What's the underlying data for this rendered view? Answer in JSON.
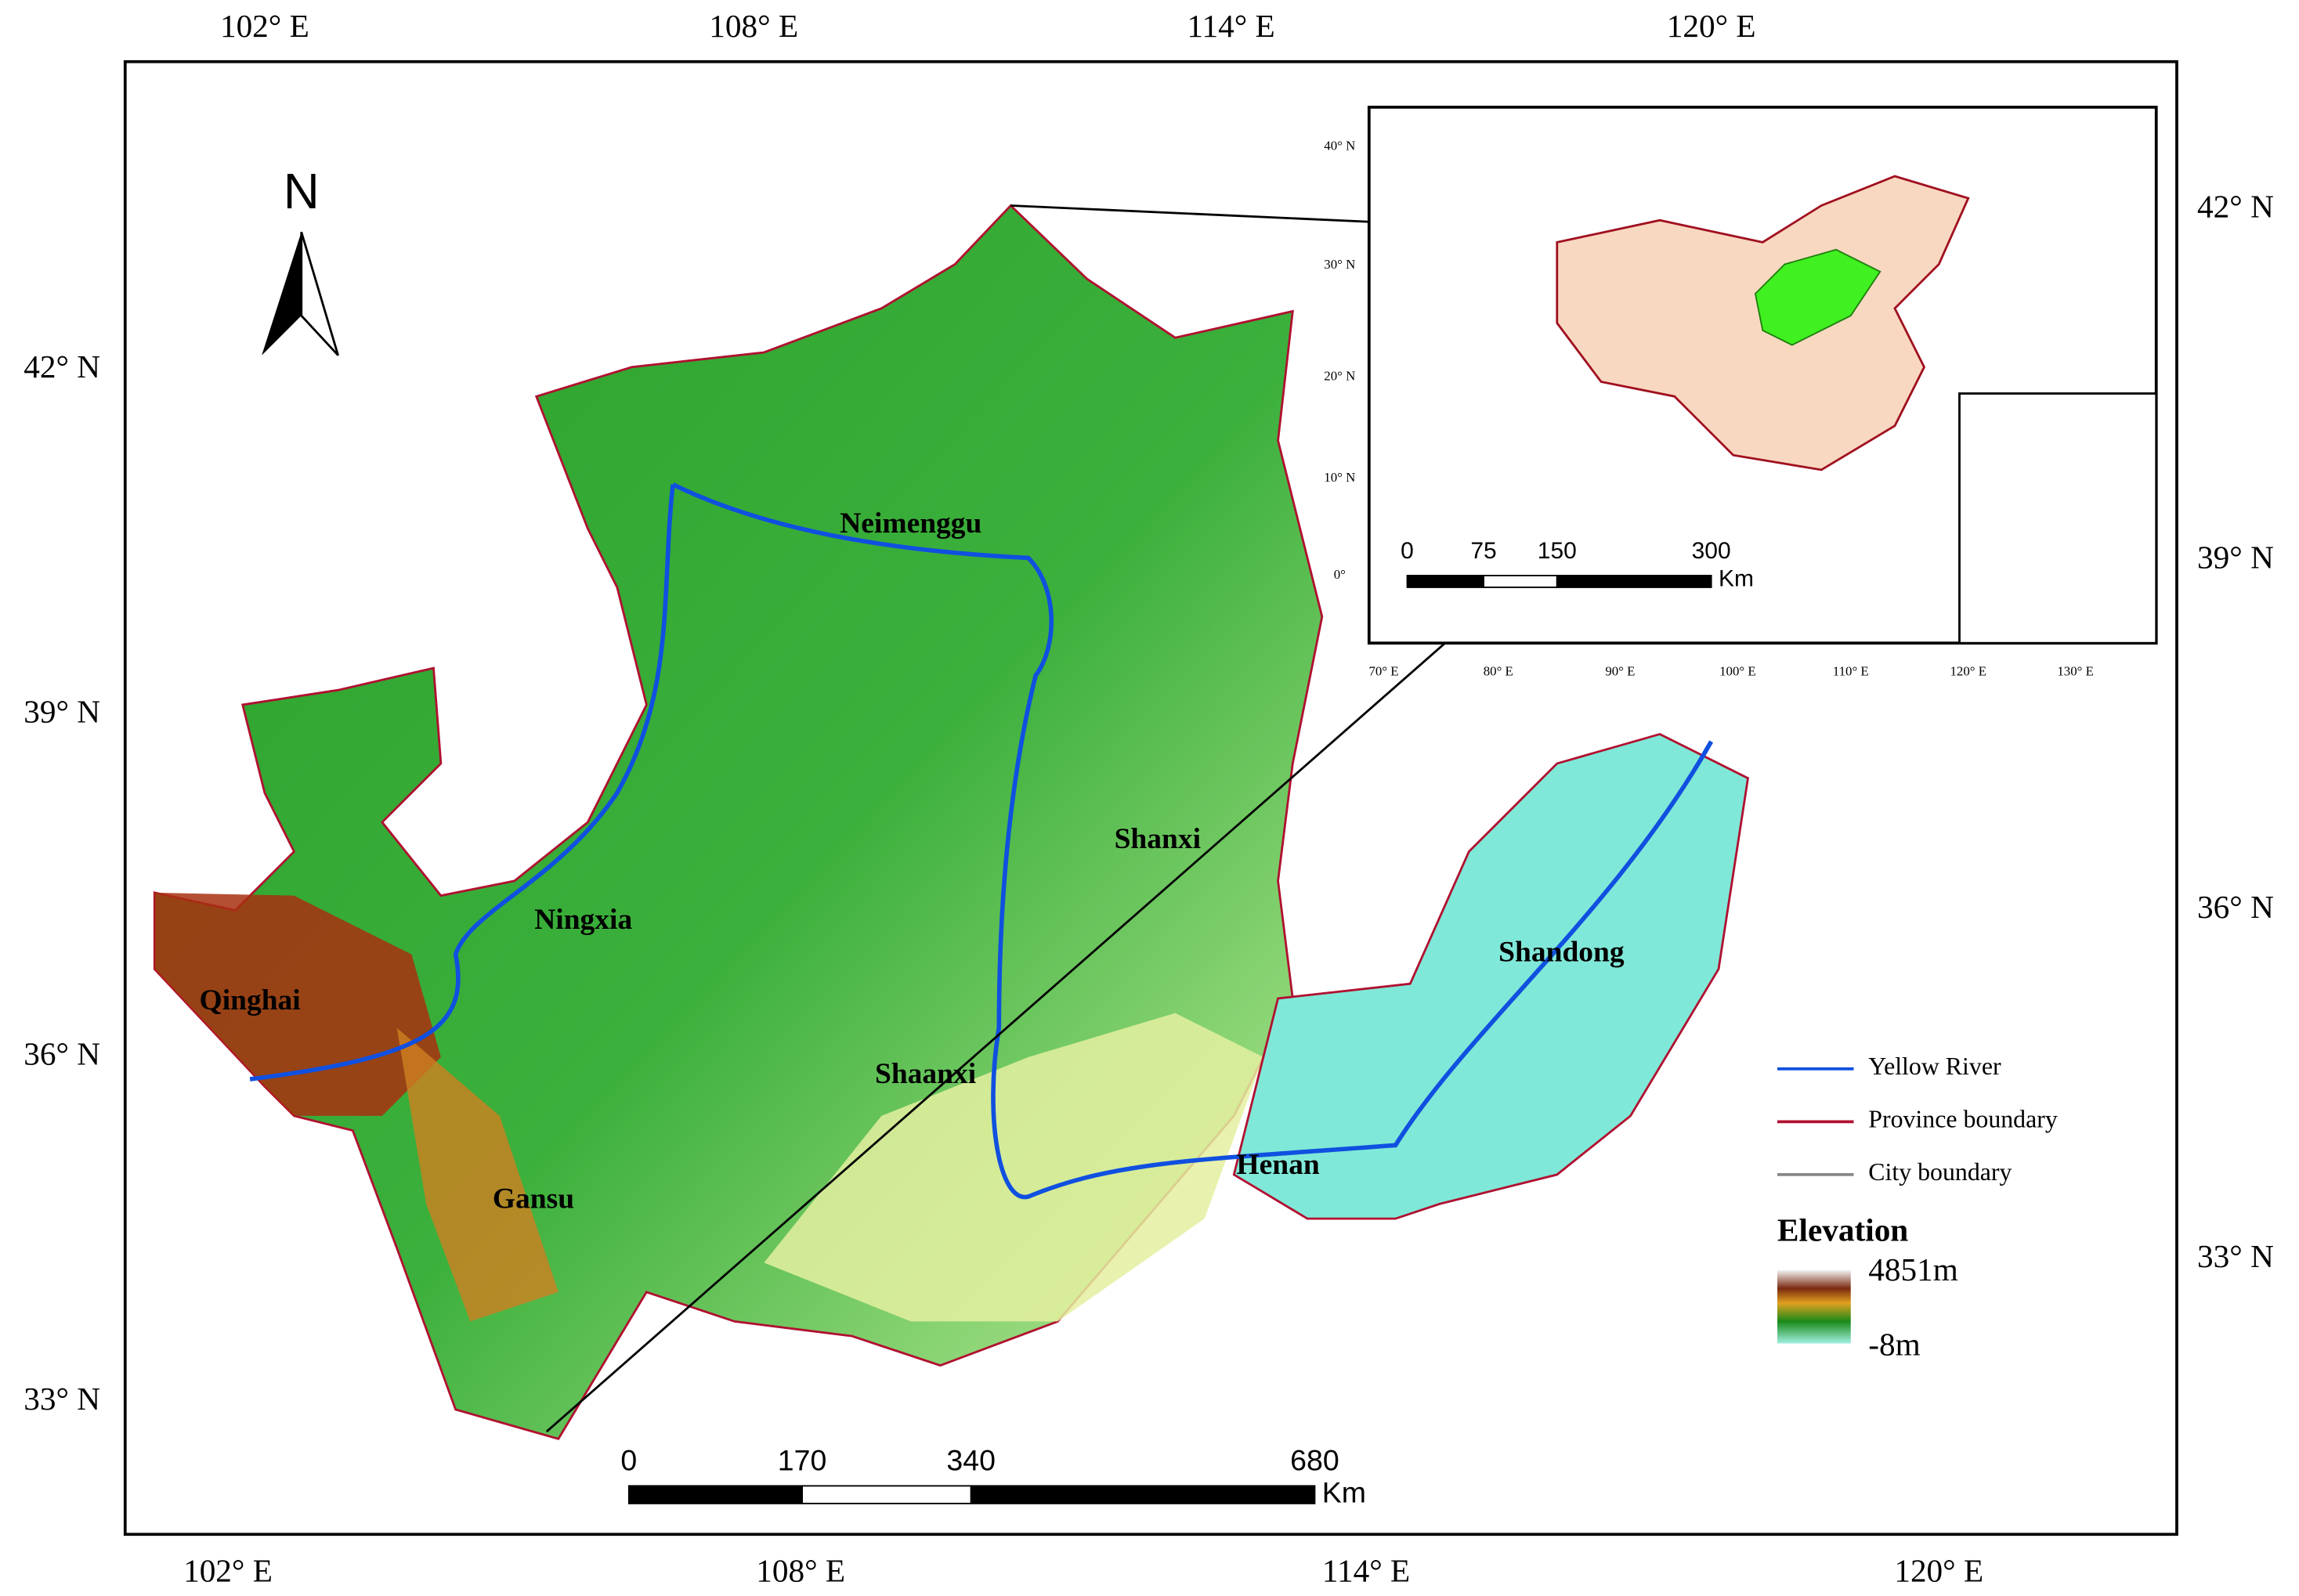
{
  "frame": {
    "top_labels": [
      "102° E",
      "108° E",
      "114° E",
      "120° E"
    ],
    "bottom_labels": [
      "102° E",
      "108° E",
      "114° E",
      "120° E"
    ],
    "left_labels": [
      "42° N",
      "39° N",
      "36° N",
      "33° N"
    ],
    "right_labels": [
      "42° N",
      "39° N",
      "36° N",
      "33° N"
    ]
  },
  "north_arrow": "N",
  "regions": [
    "Neimenggu",
    "Shanxi",
    "Ningxia",
    "Qinghai",
    "Shaanxi",
    "Gansu",
    "Henan",
    "Shandong"
  ],
  "scale_bar": {
    "labels": [
      "0",
      "170",
      "340",
      "680"
    ],
    "unit": "Km"
  },
  "inset": {
    "lat_labels": [
      "40° N",
      "30° N",
      "20° N",
      "10° N",
      "0°"
    ],
    "lon_labels": [
      "70° E",
      "80° E",
      "90° E",
      "100° E",
      "110° E",
      "120° E",
      "130° E"
    ],
    "scale_labels": [
      "0",
      "75",
      "150",
      "300"
    ],
    "unit": "Km"
  },
  "legend": {
    "items": [
      "Yellow River",
      "Province boundary",
      "City boundary"
    ],
    "elevation_title": "Elevation",
    "max": "4851m",
    "min": "-8m"
  }
}
